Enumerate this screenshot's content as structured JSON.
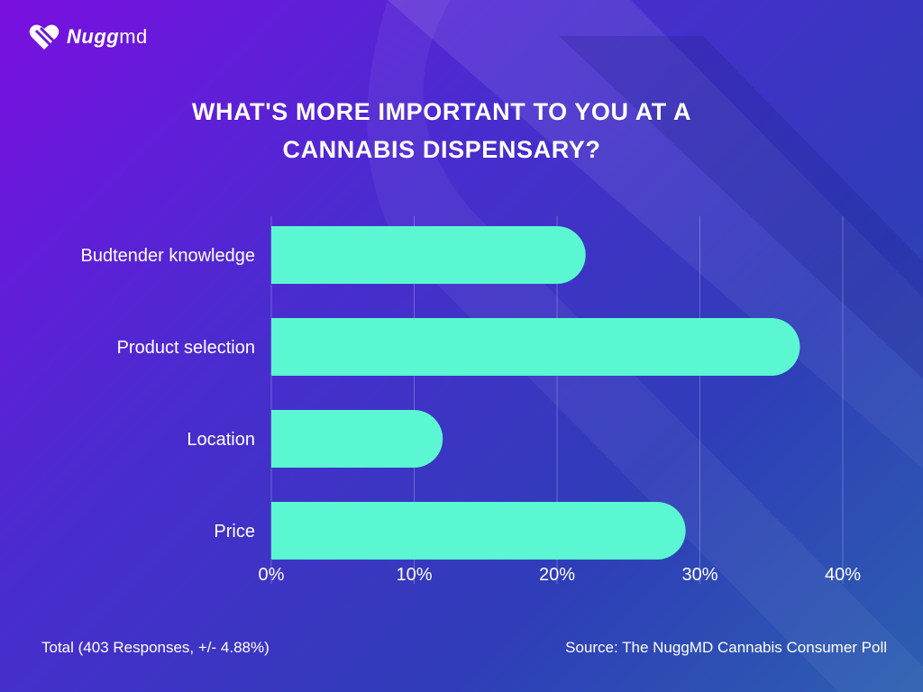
{
  "brand": {
    "name": "Nugg",
    "suffix": "md",
    "logo_icon": "heart-stripes-icon"
  },
  "colors": {
    "bar": "#5bf7d2",
    "grid": "#ffffff"
  },
  "footer": {
    "left": "Total (403 Responses, +/- 4.88%)",
    "right": "Source: The NuggMD Cannabis Consumer Poll"
  },
  "chart_data": {
    "type": "bar",
    "orientation": "horizontal",
    "title_line1": "WHAT'S MORE IMPORTANT TO YOU AT A",
    "title_line2": "CANNABIS DISPENSARY?",
    "categories": [
      "Budtender knowledge",
      "Product selection",
      "Location",
      "Price"
    ],
    "values": [
      22,
      37,
      12,
      29
    ],
    "xlim": [
      0,
      40
    ],
    "xticks": [
      "0%",
      "10%",
      "20%",
      "30%",
      "40%"
    ],
    "grid": true,
    "legend": false
  }
}
